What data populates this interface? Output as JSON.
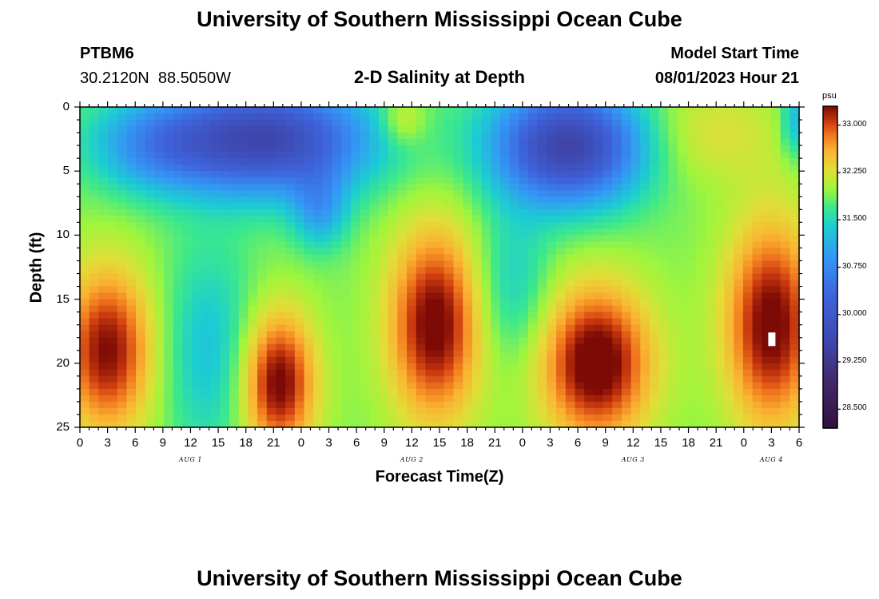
{
  "page": {
    "title_top": "University of Southern Mississippi Ocean Cube",
    "title_bottom": "University of Southern Mississippi Ocean Cube",
    "station_id": "PTBM6",
    "coordinates": "30.2120N  88.5050W",
    "plot_title": "2-D Salinity at Depth",
    "model_start_label": "Model Start Time",
    "model_start_value": "08/01/2023 Hour 21"
  },
  "chart_data": {
    "type": "heatmap",
    "title": "2-D Salinity at Depth",
    "xlabel": "Forecast Time(Z)",
    "ylabel": "Depth (ft)",
    "x_range_hours_since_aug1_00z": [
      0,
      78
    ],
    "y_range_ft": [
      0,
      25
    ],
    "x_tick_labels": [
      "0",
      "3",
      "6",
      "9",
      "12",
      "15",
      "18",
      "21",
      "0",
      "3",
      "6",
      "9",
      "12",
      "15",
      "18",
      "21",
      "0",
      "3",
      "6",
      "9",
      "12",
      "15",
      "18",
      "21",
      "0",
      "3",
      "6"
    ],
    "y_ticks": [
      0,
      5,
      10,
      15,
      20,
      25
    ],
    "y_tick_labels": [
      "0",
      "5",
      "10",
      "15",
      "20",
      "25"
    ],
    "date_labels": [
      {
        "label": "AUG 1",
        "hour": 12
      },
      {
        "label": "AUG 2",
        "hour": 36
      },
      {
        "label": "AUG 3",
        "hour": 60
      },
      {
        "label": "AUG 4",
        "hour": 75
      }
    ],
    "colorbar": {
      "unit": "psu",
      "min": 28.2,
      "max": 33.3,
      "ticks": [
        33.0,
        32.25,
        31.5,
        30.75,
        30.0,
        29.25,
        28.5
      ],
      "tick_labels": [
        "33.000",
        "32.250",
        "31.500",
        "30.750",
        "30.000",
        "29.250",
        "28.500"
      ]
    },
    "grid": {
      "columns": 77,
      "rows": 50,
      "note": "values in psu, rows from depth 0 to 25 ft, columns hourly-ish from hour 0 to 78"
    },
    "features": [
      {
        "name": "fresh surface layer 1",
        "hour_center": 20,
        "depth_center": 3,
        "value": 29.7
      },
      {
        "name": "fresh surface layer 2",
        "hour_center": 53,
        "depth_center": 3,
        "value": 29.5
      },
      {
        "name": "salty core 1",
        "hour_center": 3,
        "depth_center": 19,
        "value": 33.1
      },
      {
        "name": "salty core 2",
        "hour_center": 21.5,
        "depth_center": 21.5,
        "value": 33.2
      },
      {
        "name": "salty core 3",
        "hour_center": 38.5,
        "depth_center": 17,
        "value": 33.2
      },
      {
        "name": "salty core 4",
        "hour_center": 56,
        "depth_center": 20,
        "value": 33.3
      },
      {
        "name": "salty core 5",
        "hour_center": 75,
        "depth_center": 17,
        "value": 33.2
      }
    ]
  }
}
